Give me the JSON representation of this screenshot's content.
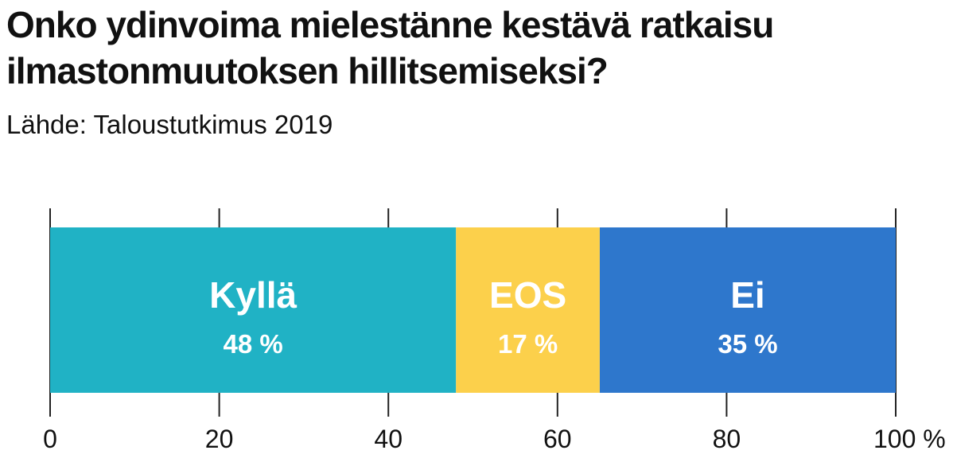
{
  "title_line1": "Onko ydinvoima mielestänne kestävä ratkaisu",
  "title_line2": "ilmastonmuutoksen hillitsemiseksi?",
  "subtitle": "Lähde: Taloustutkimus 2019",
  "chart_data": {
    "type": "bar",
    "orientation": "horizontal-stacked",
    "categories": [
      "Kyllä",
      "EOS",
      "Ei"
    ],
    "values": [
      48,
      17,
      35
    ],
    "value_labels": [
      "48 %",
      "17 %",
      "35 %"
    ],
    "colors": [
      "#20b2c5",
      "#fcd04b",
      "#2e77cc"
    ],
    "xlim": [
      0,
      100
    ],
    "ticks": [
      0,
      20,
      40,
      60,
      80,
      100
    ],
    "tick_labels": [
      "0",
      "20",
      "40",
      "60",
      "80",
      "100 %"
    ],
    "grid": true
  }
}
